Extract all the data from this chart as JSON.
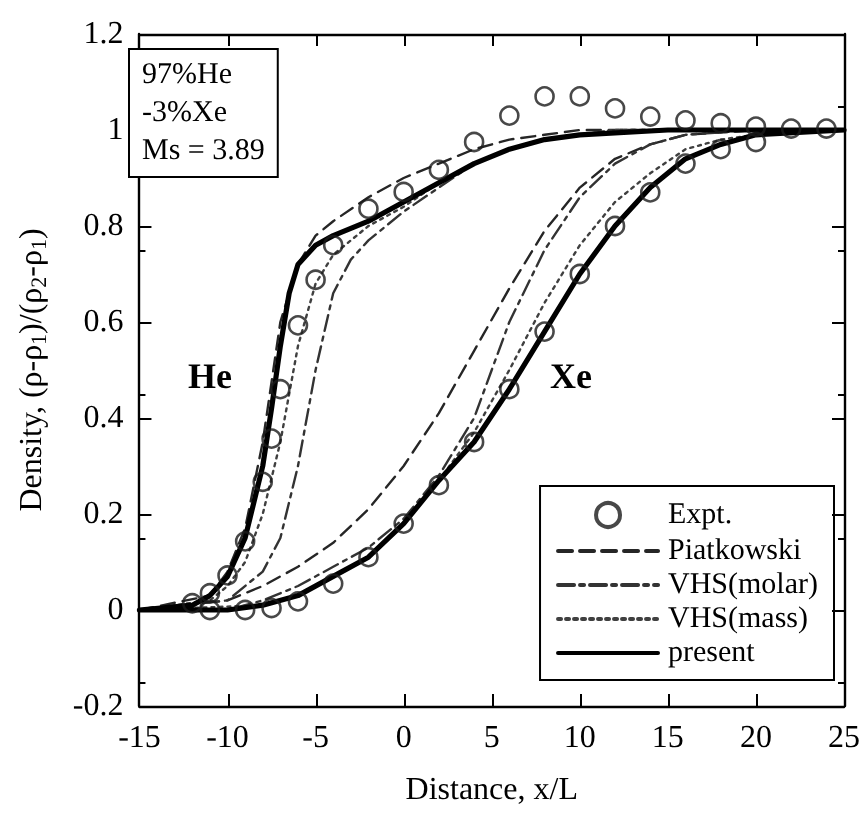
{
  "chart_data": {
    "type": "line",
    "xlabel": "Distance, x/L",
    "ylabel": "Density, (ρ-ρ$_{1}$)/(ρ$_{2}$-ρ$_{1}$)",
    "xlim": [
      -15,
      25
    ],
    "xticks": [
      -15,
      -10,
      -5,
      0,
      5,
      10,
      15,
      20,
      25
    ],
    "ylim": [
      -0.2,
      1.2
    ],
    "yticks": [
      -0.2,
      0,
      0.2,
      0.4,
      0.6,
      0.8,
      1,
      1.2
    ],
    "grid": false,
    "legend": "bottom right",
    "annotations": [
      "97%He\n-3%Xe\nMs = 3.89",
      "He",
      "Xe"
    ],
    "series": [
      {
        "name": "Expt.",
        "type": "scatter",
        "marker": "circle",
        "color": "#1a1a1a",
        "x": [
          -12,
          -11,
          -10,
          -9,
          -8,
          -7.5,
          -7,
          -6,
          -5,
          -4,
          -2,
          0,
          2,
          4,
          6,
          8,
          10,
          12,
          14,
          16,
          18,
          20,
          22,
          24,
          -11,
          -9,
          -7.5,
          -6,
          -4,
          -2,
          0,
          2,
          4,
          6,
          8,
          10,
          12,
          14,
          16,
          18,
          20
        ],
        "values": [
          0.014,
          0.035,
          0.072,
          0.143,
          0.267,
          0.357,
          0.46,
          0.593,
          0.688,
          0.76,
          0.836,
          0.871,
          0.917,
          0.975,
          1.03,
          1.07,
          1.07,
          1.045,
          1.028,
          1.02,
          1.014,
          1.007,
          1.003,
          1.003,
          0,
          0,
          0.004,
          0.018,
          0.055,
          0.11,
          0.18,
          0.26,
          0.35,
          0.46,
          0.58,
          0.7,
          0.8,
          0.87,
          0.93,
          0.96,
          0.975
        ]
      },
      {
        "name": "Piatkowski",
        "marker": "none",
        "line_style": "dashed",
        "color": "#262626",
        "x": [
          -15,
          -11,
          -10,
          -9,
          -8,
          -7,
          -6,
          -5,
          -4,
          -2,
          0,
          2,
          4,
          6,
          8,
          10,
          25,
          null,
          -15,
          -10,
          -8,
          -6,
          -4,
          -2,
          0,
          2,
          4,
          6,
          8,
          10,
          12,
          14,
          16,
          20,
          25
        ],
        "values": [
          0,
          0.03,
          0.08,
          0.17,
          0.35,
          0.6,
          0.72,
          0.78,
          0.81,
          0.86,
          0.9,
          0.93,
          0.96,
          0.98,
          0.99,
          1,
          1,
          null,
          0,
          0.02,
          0.05,
          0.09,
          0.14,
          0.21,
          0.3,
          0.41,
          0.54,
          0.67,
          0.79,
          0.88,
          0.94,
          0.97,
          0.99,
          1,
          1
        ]
      },
      {
        "name": "VHS(molar)",
        "marker": "none",
        "line_style": "dashdot",
        "color": "#333333",
        "x": [
          -15,
          -10,
          -8,
          -7,
          -6,
          -5,
          -4,
          -3,
          -2,
          0,
          2,
          4,
          6,
          8,
          12,
          25,
          null,
          -15,
          -10,
          -8,
          -6,
          -4,
          -2,
          0,
          2,
          4,
          5,
          6,
          8,
          10,
          12,
          14,
          16,
          20,
          25
        ],
        "values": [
          0,
          0.02,
          0.08,
          0.15,
          0.3,
          0.5,
          0.66,
          0.73,
          0.77,
          0.83,
          0.88,
          0.93,
          0.96,
          0.98,
          1,
          1,
          null,
          0,
          0,
          0.02,
          0.05,
          0.09,
          0.13,
          0.19,
          0.28,
          0.4,
          0.5,
          0.6,
          0.75,
          0.86,
          0.93,
          0.97,
          0.99,
          1,
          1
        ]
      },
      {
        "name": "VHS(mass)",
        "marker": "none",
        "line_style": "dotted",
        "color": "#404040",
        "x": [
          -15,
          -11,
          -10,
          -9,
          -8,
          -7,
          -6,
          -5,
          -4,
          -2,
          0,
          2,
          4,
          6,
          8,
          12,
          25,
          null,
          -15,
          -8,
          -6,
          -4,
          -2,
          0,
          2,
          4,
          6,
          8,
          10,
          12,
          14,
          16,
          18,
          20,
          25
        ],
        "values": [
          0,
          0.02,
          0.05,
          0.1,
          0.2,
          0.35,
          0.55,
          0.68,
          0.74,
          0.8,
          0.84,
          0.89,
          0.93,
          0.96,
          0.98,
          1,
          1,
          null,
          0,
          0.01,
          0.03,
          0.07,
          0.11,
          0.18,
          0.27,
          0.37,
          0.5,
          0.64,
          0.76,
          0.85,
          0.91,
          0.96,
          0.98,
          0.99,
          1
        ]
      },
      {
        "name": "present",
        "marker": "none",
        "line_style": "solid",
        "color": "#000000",
        "x": [
          -15,
          -12,
          -11,
          -10,
          -9,
          -8,
          -7.5,
          -7,
          -6.5,
          -6,
          -5,
          -4,
          -2,
          0,
          2,
          4,
          6,
          8,
          10,
          15,
          25,
          null,
          -15,
          -10,
          -8,
          -6,
          -4,
          -2,
          0,
          2,
          3,
          4,
          6,
          8,
          10,
          12,
          14,
          16,
          18,
          20,
          25
        ],
        "values": [
          0,
          0.01,
          0.03,
          0.07,
          0.15,
          0.3,
          0.42,
          0.55,
          0.66,
          0.72,
          0.76,
          0.78,
          0.81,
          0.85,
          0.89,
          0.93,
          0.96,
          0.98,
          0.99,
          1,
          1,
          null,
          0,
          0,
          0.01,
          0.03,
          0.07,
          0.11,
          0.18,
          0.27,
          0.31,
          0.35,
          0.46,
          0.58,
          0.7,
          0.8,
          0.88,
          0.94,
          0.97,
          0.99,
          1
        ]
      }
    ]
  }
}
